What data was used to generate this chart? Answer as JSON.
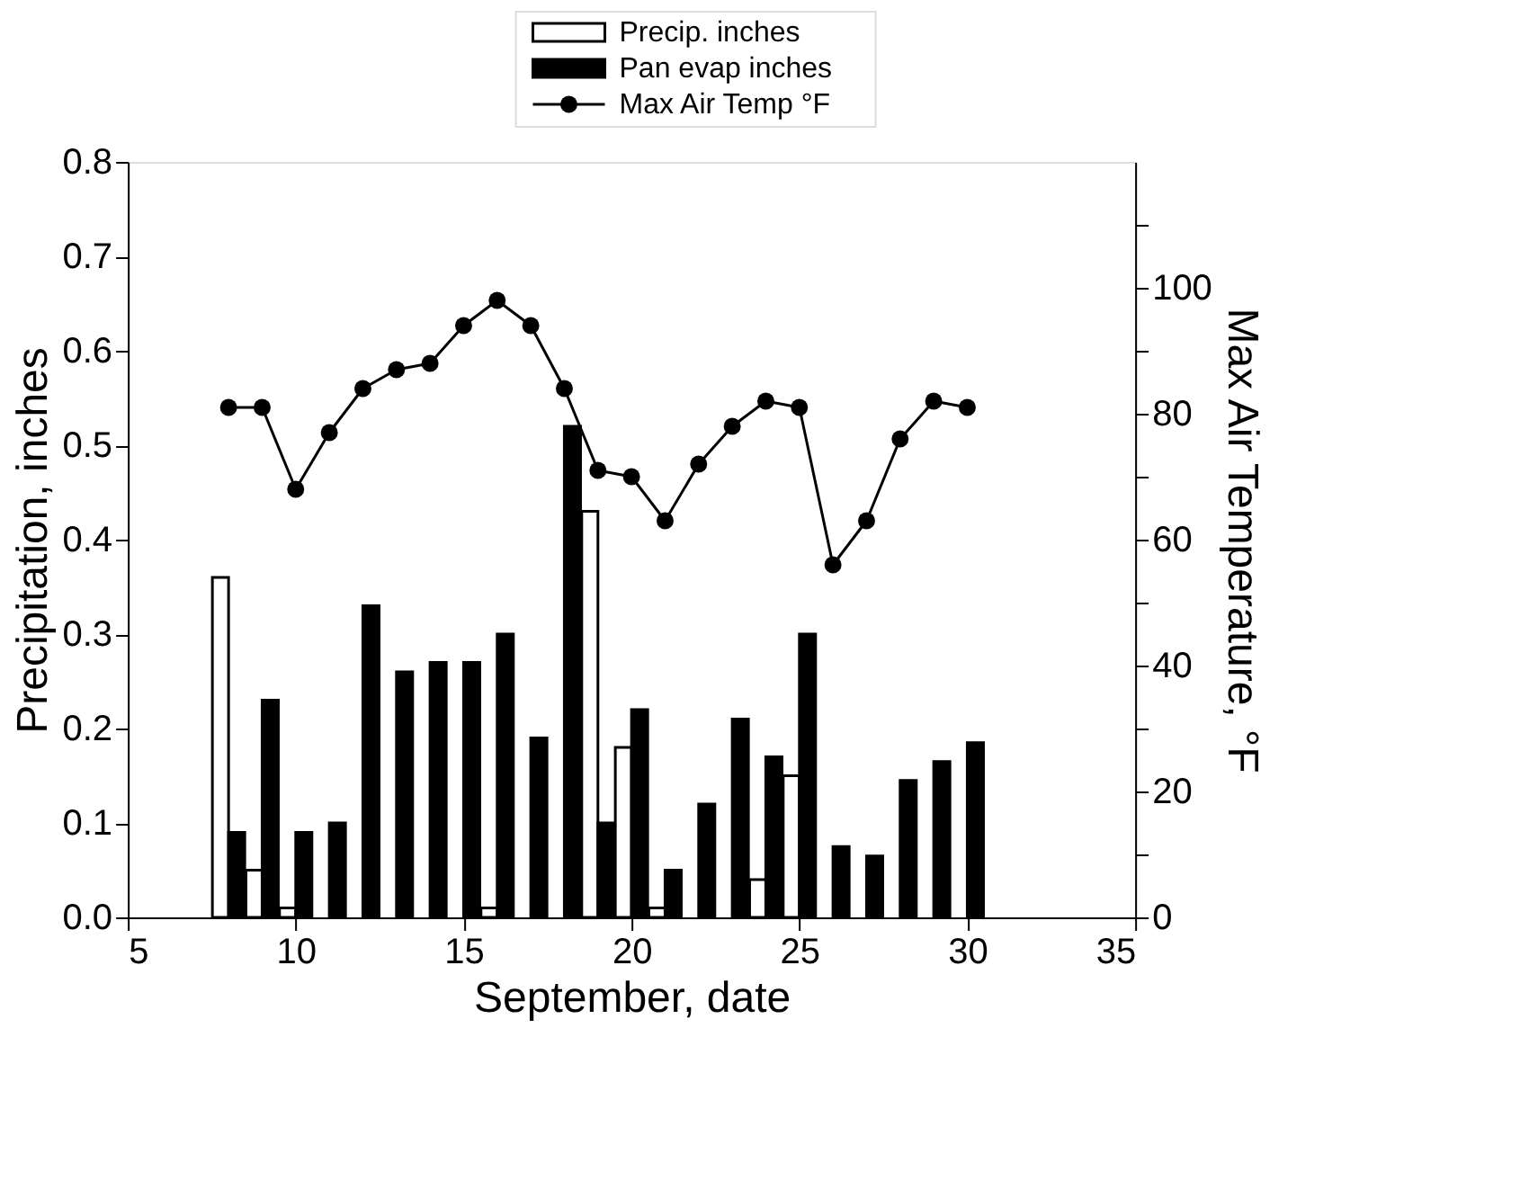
{
  "chart_data": {
    "type": "bar",
    "xlabel": "September, date",
    "ylabel": "Precipitation, inches",
    "y2label": "Max Air Temperature, °F",
    "x": [
      8,
      9,
      10,
      11,
      12,
      13,
      14,
      15,
      16,
      17,
      18,
      19,
      20,
      21,
      22,
      23,
      24,
      25,
      26,
      27,
      28,
      29,
      30
    ],
    "series": [
      {
        "name": "Precip. inches",
        "color": "#ffffff",
        "values": [
          0.36,
          0.05,
          0.01,
          null,
          null,
          null,
          null,
          null,
          0.01,
          null,
          null,
          0.43,
          0.18,
          0.01,
          null,
          null,
          0.04,
          0.15,
          null,
          null,
          null,
          null,
          null
        ]
      },
      {
        "name": "Pan evap inches",
        "color": "#000000",
        "values": [
          0.09,
          0.23,
          0.09,
          0.1,
          0.33,
          0.26,
          0.27,
          0.27,
          0.3,
          0.19,
          0.52,
          0.1,
          0.22,
          0.05,
          0.12,
          0.21,
          0.17,
          0.3,
          0.075,
          0.065,
          0.145,
          0.165,
          0.185
        ]
      },
      {
        "name": "Max Air Temp °F",
        "type": "line",
        "axis": "y2",
        "color": "#000000",
        "marker": "circle",
        "values": [
          81,
          81,
          68,
          77,
          84,
          87,
          88,
          94,
          98,
          94,
          84,
          71,
          70,
          63,
          72,
          78,
          82,
          81,
          56,
          63,
          76,
          82,
          81
        ]
      }
    ],
    "xlim": [
      5,
      35
    ],
    "xticks": [
      5,
      10,
      15,
      20,
      25,
      30,
      35
    ],
    "ylim": [
      0,
      0.8
    ],
    "yticks": [
      {
        "value": 0,
        "label": "0.0"
      },
      0.1,
      0.2,
      0.3,
      0.4,
      0.5,
      0.6,
      0.7,
      0.8
    ],
    "y2lim": [
      0,
      120
    ],
    "y2ticks": [
      0,
      {
        "value": 10,
        "label": null
      },
      20,
      {
        "value": 30,
        "label": null
      },
      40,
      {
        "value": 50,
        "label": null
      },
      60,
      {
        "value": 70,
        "label": null
      },
      80,
      {
        "value": 90,
        "label": null
      },
      100,
      {
        "value": 110,
        "label": null
      }
    ],
    "legend": "top",
    "grid": false
  }
}
